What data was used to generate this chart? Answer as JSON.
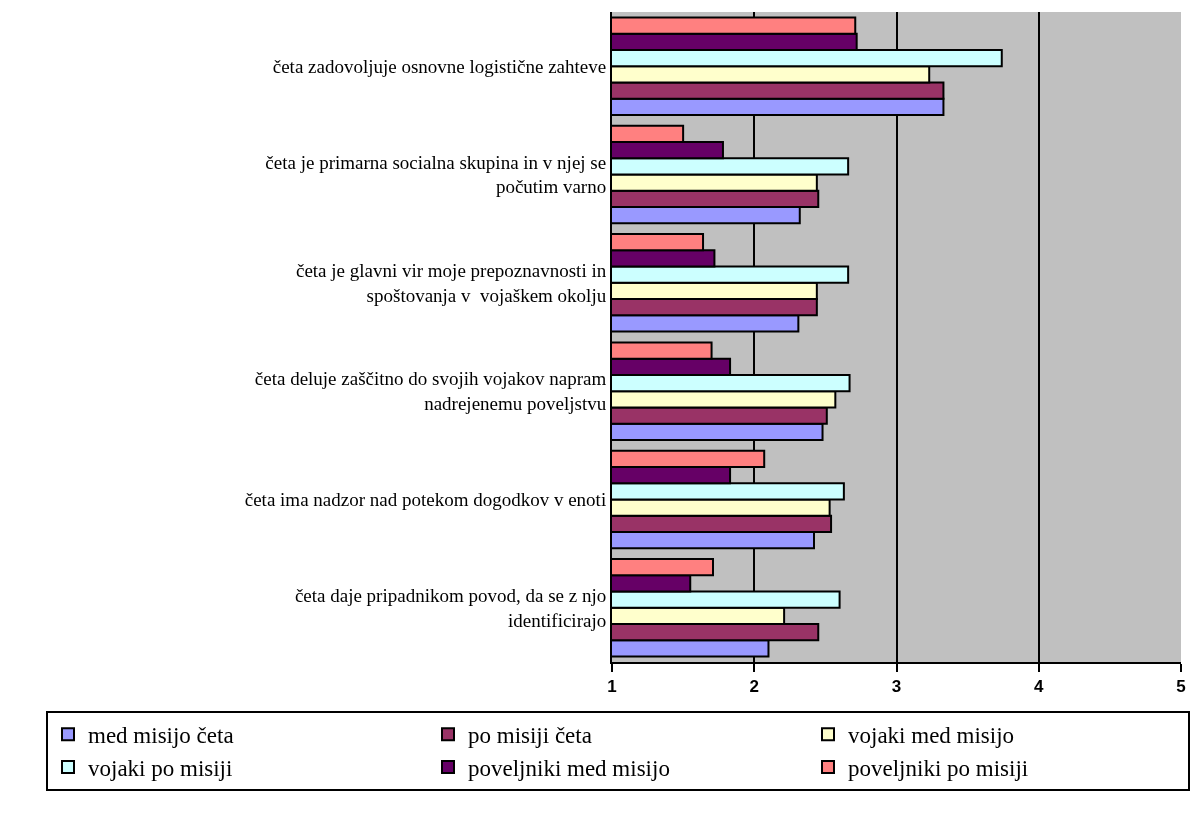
{
  "chart_data": {
    "type": "bar",
    "orientation": "horizontal",
    "categories": [
      "četa zadovoljuje osnovne logistične zahteve",
      "četa je primarna socialna skupina in v njej se počutim varno",
      "četa je glavni vir moje prepoznavnosti in spoštovanja v  vojaškem okolju",
      "četa deluje zaščitno do svojih vojakov napram nadrejenemu poveljstvu",
      "četa ima nadzor nad potekom dogodkov v enoti",
      "četa daje pripadnikom povod, da se z njo identificirajo"
    ],
    "series": [
      {
        "name": "med misijo četa",
        "color": "#9999ff",
        "values": [
          3.33,
          2.32,
          2.31,
          2.48,
          2.42,
          2.1
        ]
      },
      {
        "name": "po misiji četa",
        "color": "#993366",
        "values": [
          3.33,
          2.45,
          2.44,
          2.51,
          2.54,
          2.45
        ]
      },
      {
        "name": "vojaki med misijo",
        "color": "#ffffcc",
        "values": [
          3.23,
          2.44,
          2.44,
          2.57,
          2.53,
          2.21
        ]
      },
      {
        "name": "vojaki po misiji",
        "color": "#ccffff",
        "values": [
          3.74,
          2.66,
          2.66,
          2.67,
          2.63,
          2.6
        ]
      },
      {
        "name": "poveljniki med misijo",
        "color": "#660066",
        "values": [
          2.72,
          1.78,
          1.72,
          1.83,
          1.83,
          1.55
        ]
      },
      {
        "name": "poveljniki po misiji",
        "color": "#ff8080",
        "values": [
          2.71,
          1.5,
          1.64,
          1.7,
          2.07,
          1.71
        ]
      }
    ],
    "xlim": [
      1,
      5
    ],
    "xticks": [
      1,
      2,
      3,
      4,
      5
    ],
    "grid": "x",
    "legend": "bottom"
  }
}
